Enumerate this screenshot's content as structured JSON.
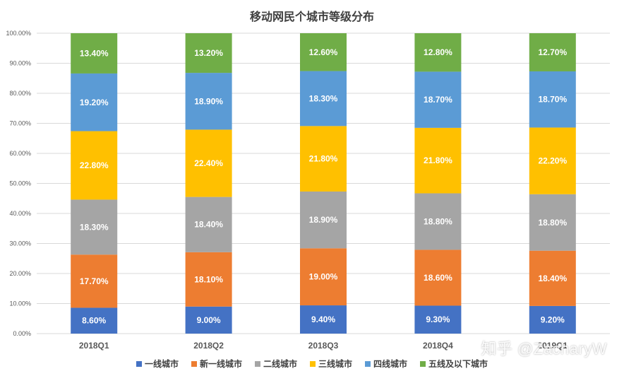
{
  "chart_data": {
    "type": "bar",
    "stacked": true,
    "title": "移动网民个城市等级分布",
    "categories": [
      "2018Q1",
      "2018Q2",
      "2018Q3",
      "2018Q4",
      "2019Q1"
    ],
    "ylim": [
      0,
      100
    ],
    "yticks": [
      "0.00%",
      "10.00%",
      "20.00%",
      "30.00%",
      "40.00%",
      "50.00%",
      "60.00%",
      "70.00%",
      "80.00%",
      "90.00%",
      "100.00%"
    ],
    "grid": true,
    "legend_position": "bottom",
    "series": [
      {
        "name": "一线城市",
        "color": "#4472C4",
        "values": [
          8.6,
          9.0,
          9.4,
          9.3,
          9.2
        ],
        "labels": [
          "8.60%",
          "9.00%",
          "9.40%",
          "9.30%",
          "9.20%"
        ]
      },
      {
        "name": "新一线城市",
        "color": "#ED7D31",
        "values": [
          17.7,
          18.1,
          19.0,
          18.6,
          18.4
        ],
        "labels": [
          "17.70%",
          "18.10%",
          "19.00%",
          "18.60%",
          "18.40%"
        ]
      },
      {
        "name": "二线城市",
        "color": "#A5A5A5",
        "values": [
          18.3,
          18.4,
          18.9,
          18.8,
          18.8
        ],
        "labels": [
          "18.30%",
          "18.40%",
          "18.90%",
          "18.80%",
          "18.80%"
        ]
      },
      {
        "name": "三线城市",
        "color": "#FFC000",
        "values": [
          22.8,
          22.4,
          21.8,
          21.8,
          22.2
        ],
        "labels": [
          "22.80%",
          "22.40%",
          "21.80%",
          "21.80%",
          "22.20%"
        ]
      },
      {
        "name": "四线城市",
        "color": "#5B9BD5",
        "values": [
          19.2,
          18.9,
          18.3,
          18.7,
          18.7
        ],
        "labels": [
          "19.20%",
          "18.90%",
          "18.30%",
          "18.70%",
          "18.70%"
        ]
      },
      {
        "name": "五线及以下城市",
        "color": "#70AD47",
        "values": [
          13.4,
          13.2,
          12.6,
          12.8,
          12.7
        ],
        "labels": [
          "13.40%",
          "13.20%",
          "12.60%",
          "12.80%",
          "12.70%"
        ]
      }
    ]
  },
  "watermark": "知乎 @ZacharyW"
}
